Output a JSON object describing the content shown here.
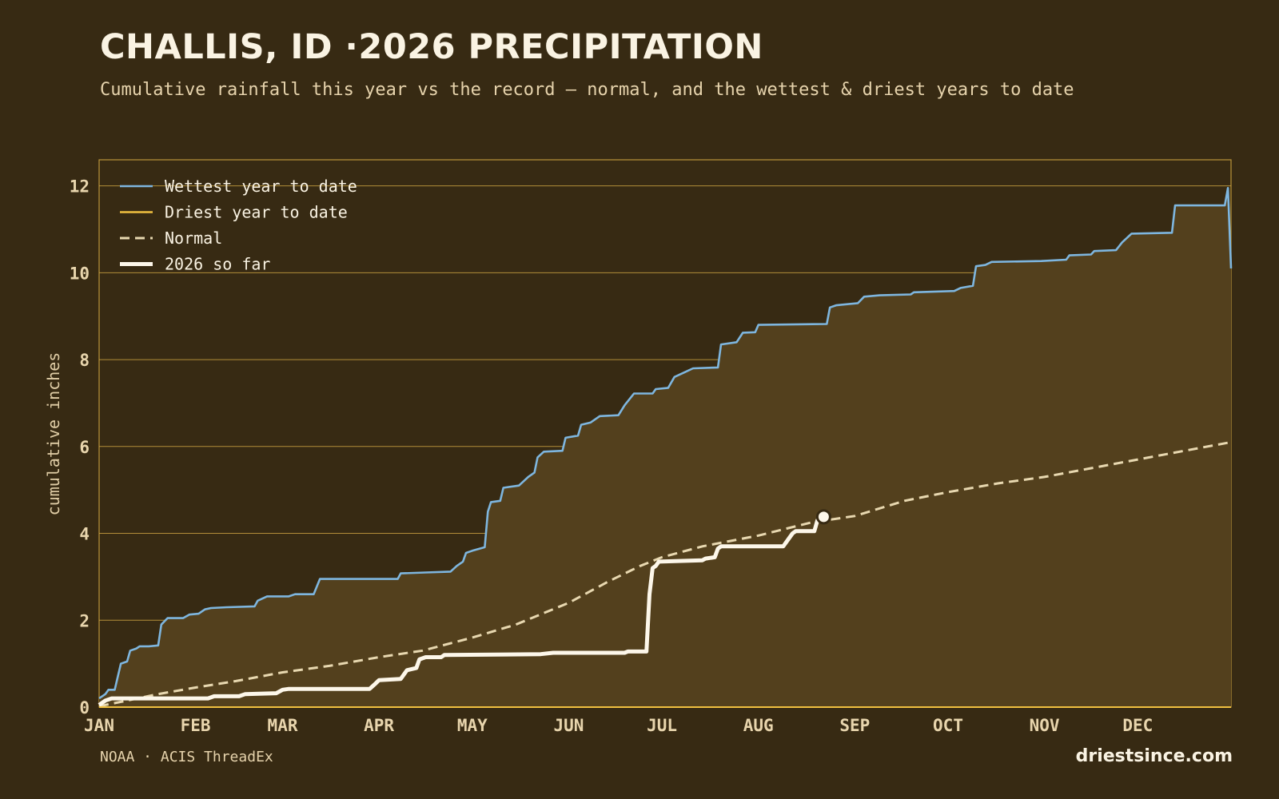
{
  "header": {
    "title": "CHALLIS, ID ·2026 PRECIPITATION",
    "subtitle": "Cumulative rainfall this year vs the record — normal, and the wettest & driest years to date"
  },
  "footer": {
    "source": "NOAA · ACIS ThreadEx",
    "brand": "driestsince.com"
  },
  "colors": {
    "background": "#372a13",
    "fill": "#53401d",
    "grid": "#c9a040",
    "wettest": "#7eb6df",
    "driest": "#f0c040",
    "normal": "#e8d8b0",
    "current": "#fdf7ea"
  },
  "chart_data": {
    "type": "line",
    "title": "CHALLIS, ID ·2026 PRECIPITATION",
    "ylabel": "cumulative inches",
    "x_unit": "day of year",
    "xlim": [
      1,
      365
    ],
    "ylim": [
      0,
      12.6
    ],
    "yticks": [
      0,
      2,
      4,
      6,
      8,
      10,
      12
    ],
    "month_ticks": [
      {
        "label": "JAN",
        "day": 1
      },
      {
        "label": "FEB",
        "day": 32
      },
      {
        "label": "MAR",
        "day": 60
      },
      {
        "label": "APR",
        "day": 91
      },
      {
        "label": "MAY",
        "day": 121
      },
      {
        "label": "JUN",
        "day": 152
      },
      {
        "label": "JUL",
        "day": 182
      },
      {
        "label": "AUG",
        "day": 213
      },
      {
        "label": "SEP",
        "day": 244
      },
      {
        "label": "OCT",
        "day": 274
      },
      {
        "label": "NOV",
        "day": 305
      },
      {
        "label": "DEC",
        "day": 335
      }
    ],
    "grid": true,
    "legend_position": "top-left",
    "series": [
      {
        "name": "Wettest year to date",
        "key": "wettest",
        "color": "#7eb6df",
        "points": [
          [
            1,
            0.2
          ],
          [
            3,
            0.3
          ],
          [
            4,
            0.4
          ],
          [
            6,
            0.4
          ],
          [
            8,
            1.0
          ],
          [
            10,
            1.05
          ],
          [
            11,
            1.3
          ],
          [
            13,
            1.35
          ],
          [
            14,
            1.4
          ],
          [
            17,
            1.4
          ],
          [
            20,
            1.42
          ],
          [
            21,
            1.9
          ],
          [
            23,
            2.05
          ],
          [
            28,
            2.05
          ],
          [
            30,
            2.13
          ],
          [
            33,
            2.15
          ],
          [
            35,
            2.25
          ],
          [
            37,
            2.28
          ],
          [
            42,
            2.3
          ],
          [
            51,
            2.32
          ],
          [
            52,
            2.45
          ],
          [
            55,
            2.55
          ],
          [
            62,
            2.55
          ],
          [
            64,
            2.6
          ],
          [
            70,
            2.6
          ],
          [
            72,
            2.95
          ],
          [
            97,
            2.95
          ],
          [
            98,
            3.08
          ],
          [
            106,
            3.1
          ],
          [
            114,
            3.12
          ],
          [
            116,
            3.25
          ],
          [
            118,
            3.35
          ],
          [
            119,
            3.55
          ],
          [
            121,
            3.6
          ],
          [
            125,
            3.68
          ],
          [
            126,
            4.5
          ],
          [
            127,
            4.72
          ],
          [
            130,
            4.75
          ],
          [
            131,
            5.05
          ],
          [
            136,
            5.1
          ],
          [
            139,
            5.3
          ],
          [
            141,
            5.4
          ],
          [
            142,
            5.75
          ],
          [
            144,
            5.88
          ],
          [
            150,
            5.9
          ],
          [
            151,
            6.2
          ],
          [
            155,
            6.25
          ],
          [
            156,
            6.5
          ],
          [
            159,
            6.55
          ],
          [
            162,
            6.7
          ],
          [
            168,
            6.72
          ],
          [
            170,
            6.95
          ],
          [
            173,
            7.22
          ],
          [
            179,
            7.22
          ],
          [
            180,
            7.32
          ],
          [
            184,
            7.35
          ],
          [
            186,
            7.6
          ],
          [
            189,
            7.7
          ],
          [
            192,
            7.8
          ],
          [
            200,
            7.82
          ],
          [
            201,
            8.35
          ],
          [
            206,
            8.4
          ],
          [
            208,
            8.62
          ],
          [
            212,
            8.63
          ],
          [
            213,
            8.8
          ],
          [
            235,
            8.82
          ],
          [
            236,
            9.2
          ],
          [
            238,
            9.25
          ],
          [
            245,
            9.3
          ],
          [
            247,
            9.45
          ],
          [
            252,
            9.48
          ],
          [
            262,
            9.5
          ],
          [
            263,
            9.55
          ],
          [
            276,
            9.58
          ],
          [
            278,
            9.65
          ],
          [
            282,
            9.7
          ],
          [
            283,
            10.15
          ],
          [
            286,
            10.18
          ],
          [
            288,
            10.25
          ],
          [
            304,
            10.27
          ],
          [
            312,
            10.3
          ],
          [
            313,
            10.4
          ],
          [
            320,
            10.42
          ],
          [
            321,
            10.5
          ],
          [
            328,
            10.52
          ],
          [
            330,
            10.7
          ],
          [
            333,
            10.9
          ],
          [
            346,
            10.92
          ],
          [
            347,
            11.55
          ],
          [
            363,
            11.55
          ],
          [
            364,
            11.95
          ],
          [
            365,
            10.1
          ]
        ]
      },
      {
        "name": "Driest year to date",
        "key": "driest",
        "color": "#f0c040",
        "points": [
          [
            1,
            0
          ],
          [
            365,
            0
          ]
        ]
      },
      {
        "name": "Normal",
        "key": "normal",
        "color": "#e8d8b0",
        "dashed": true,
        "points": [
          [
            1,
            0.02
          ],
          [
            10,
            0.15
          ],
          [
            20,
            0.3
          ],
          [
            32,
            0.45
          ],
          [
            45,
            0.6
          ],
          [
            60,
            0.8
          ],
          [
            75,
            0.95
          ],
          [
            91,
            1.15
          ],
          [
            105,
            1.3
          ],
          [
            121,
            1.6
          ],
          [
            135,
            1.9
          ],
          [
            152,
            2.4
          ],
          [
            165,
            2.9
          ],
          [
            175,
            3.25
          ],
          [
            182,
            3.45
          ],
          [
            195,
            3.7
          ],
          [
            213,
            3.95
          ],
          [
            230,
            4.25
          ],
          [
            244,
            4.4
          ],
          [
            260,
            4.75
          ],
          [
            274,
            4.95
          ],
          [
            290,
            5.15
          ],
          [
            305,
            5.3
          ],
          [
            320,
            5.5
          ],
          [
            335,
            5.7
          ],
          [
            350,
            5.9
          ],
          [
            365,
            6.1
          ]
        ]
      },
      {
        "name": "2026 so far",
        "key": "current",
        "color": "#fdf7ea",
        "points": [
          [
            1,
            0.05
          ],
          [
            3,
            0.15
          ],
          [
            5,
            0.2
          ],
          [
            36,
            0.2
          ],
          [
            38,
            0.25
          ],
          [
            46,
            0.25
          ],
          [
            48,
            0.3
          ],
          [
            58,
            0.32
          ],
          [
            60,
            0.4
          ],
          [
            62,
            0.42
          ],
          [
            88,
            0.42
          ],
          [
            90,
            0.55
          ],
          [
            91,
            0.62
          ],
          [
            98,
            0.65
          ],
          [
            100,
            0.85
          ],
          [
            103,
            0.9
          ],
          [
            104,
            1.1
          ],
          [
            106,
            1.15
          ],
          [
            111,
            1.15
          ],
          [
            112,
            1.2
          ],
          [
            143,
            1.22
          ],
          [
            147,
            1.25
          ],
          [
            170,
            1.25
          ],
          [
            171,
            1.28
          ],
          [
            177,
            1.28
          ],
          [
            178,
            2.6
          ],
          [
            179,
            3.2
          ],
          [
            180,
            3.25
          ],
          [
            181,
            3.35
          ],
          [
            195,
            3.38
          ],
          [
            196,
            3.42
          ],
          [
            199,
            3.45
          ],
          [
            200,
            3.65
          ],
          [
            201,
            3.7
          ],
          [
            221,
            3.7
          ],
          [
            222,
            3.8
          ],
          [
            224,
            4.0
          ],
          [
            225,
            4.05
          ],
          [
            231,
            4.05
          ],
          [
            232,
            4.3
          ],
          [
            234,
            4.38
          ]
        ],
        "current_point": [
          234,
          4.38
        ]
      }
    ]
  }
}
